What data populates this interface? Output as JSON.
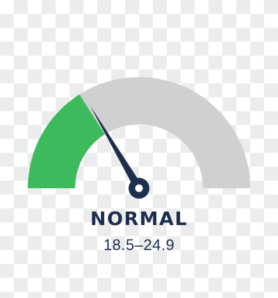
{
  "gauge": {
    "status": "NORMAL",
    "range": "18.5–24.9",
    "level": 0.33,
    "active_fraction": 0.32,
    "colors": {
      "active": "#3dba5c",
      "track": "#d0d0d0",
      "needle": "#1e2e4e",
      "text": "#1e2e4e"
    }
  }
}
